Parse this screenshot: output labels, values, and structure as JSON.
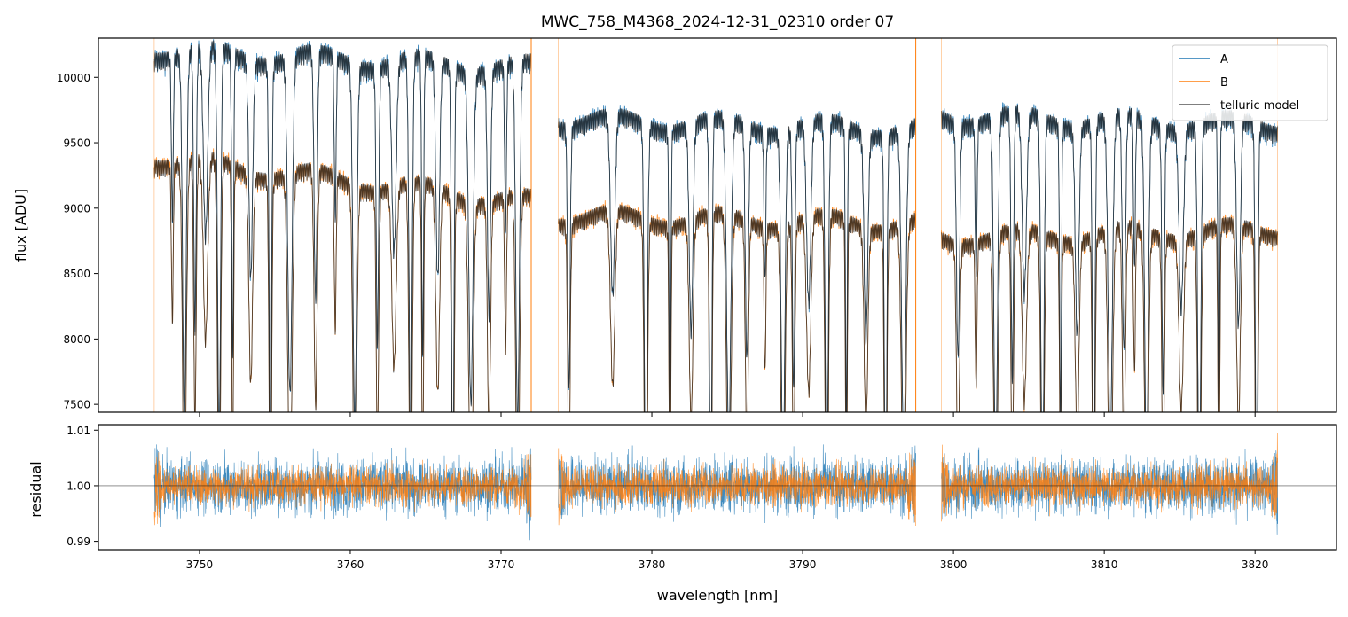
{
  "chart_data": [
    {
      "type": "line",
      "panel": "top",
      "title": "MWC_758_M4368_2024-12-31_02310  order 07",
      "xlabel": "",
      "ylabel": "flux [ADU]",
      "xlim": [
        3743.3,
        3825.4
      ],
      "ylim": [
        7440,
        10300
      ],
      "yticks": [
        7500,
        8000,
        8500,
        9000,
        9500,
        10000
      ],
      "yticklabels": [
        "7500",
        "8000",
        "8500",
        "9000",
        "9500",
        "10000"
      ],
      "xticks": [
        3750,
        3760,
        3770,
        3780,
        3790,
        3800,
        3810,
        3820
      ],
      "segments": [
        [
          3747.0,
          3772.0
        ],
        [
          3773.8,
          3797.5
        ],
        [
          3799.2,
          3821.5
        ]
      ],
      "series": [
        {
          "name": "A",
          "color": "#1f77b4",
          "continuum_start": [
            10250,
            9720,
            9750
          ],
          "continuum_end": [
            10120,
            9650,
            9680
          ]
        },
        {
          "name": "B",
          "color": "#ff7f0e",
          "continuum_start": [
            9430,
            8980,
            8820
          ],
          "continuum_end": [
            9090,
            8930,
            8880
          ]
        },
        {
          "name": "telluric model",
          "color": "#555555"
        }
      ],
      "absorption_lines_nm": [
        3748.2,
        3749.0,
        3749.7,
        3750.4,
        3751.3,
        3752.2,
        3753.4,
        3754.7,
        3756.0,
        3757.7,
        3759.0,
        3760.3,
        3761.8,
        3762.9,
        3764.0,
        3764.8,
        3765.8,
        3766.8,
        3768.0,
        3769.2,
        3770.3,
        3771.1,
        3774.5,
        3777.4,
        3779.6,
        3781.2,
        3782.6,
        3783.9,
        3785.1,
        3786.3,
        3787.5,
        3788.7,
        3789.4,
        3790.4,
        3791.6,
        3792.9,
        3794.2,
        3795.5,
        3796.7,
        3800.3,
        3801.5,
        3802.8,
        3803.9,
        3804.7,
        3805.9,
        3807.1,
        3808.2,
        3809.3,
        3810.4,
        3811.3,
        3812.0,
        3812.8,
        3813.9,
        3815.1,
        3816.3,
        3817.6,
        3818.9,
        3820.1
      ],
      "vertical_lines": [
        {
          "x": 3772.0,
          "color": "#ff7f0e"
        },
        {
          "x": 3797.5,
          "color": "#ff7f0e"
        }
      ],
      "legend": {
        "position": "top-right",
        "entries": [
          "A",
          "B",
          "telluric model"
        ]
      }
    },
    {
      "type": "line",
      "panel": "bottom",
      "xlabel": "wavelength [nm]",
      "ylabel": "residual",
      "xlim": [
        3743.3,
        3825.4
      ],
      "ylim": [
        0.9885,
        1.011
      ],
      "yticks": [
        0.99,
        1.0,
        1.01
      ],
      "yticklabels": [
        "0.99",
        "1.00",
        "1.01"
      ],
      "xticks": [
        3750,
        3760,
        3770,
        3780,
        3790,
        3800,
        3810,
        3820
      ],
      "xticklabels": [
        "3750",
        "3760",
        "3770",
        "3780",
        "3790",
        "3800",
        "3810",
        "3820"
      ],
      "reference_line": 1.0,
      "series": [
        {
          "name": "A",
          "color": "#1f77b4",
          "noise_sigma": 0.0035
        },
        {
          "name": "B",
          "color": "#ff7f0e",
          "noise_sigma": 0.0025
        }
      ]
    }
  ]
}
